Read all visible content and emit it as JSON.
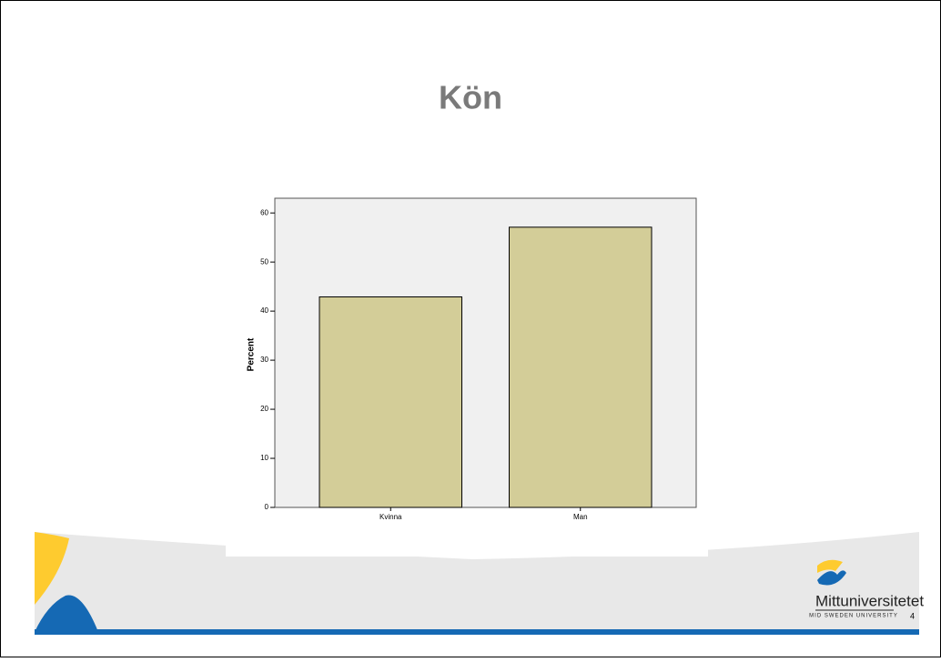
{
  "slide": {
    "title": "Kön",
    "logo_name": "Mittuniversitetet",
    "logo_sub": "MID SWEDEN UNIVERSITY",
    "page_number": "4"
  },
  "chart_data": {
    "type": "bar",
    "y_label": "Percent",
    "categories": [
      "Kvinna",
      "Man"
    ],
    "values": [
      42.9,
      57.1
    ],
    "color": "#d3cd98",
    "ylim": [
      0,
      63
    ],
    "yticks": [
      0,
      10,
      20,
      30,
      40,
      50,
      60
    ],
    "grid": false
  }
}
